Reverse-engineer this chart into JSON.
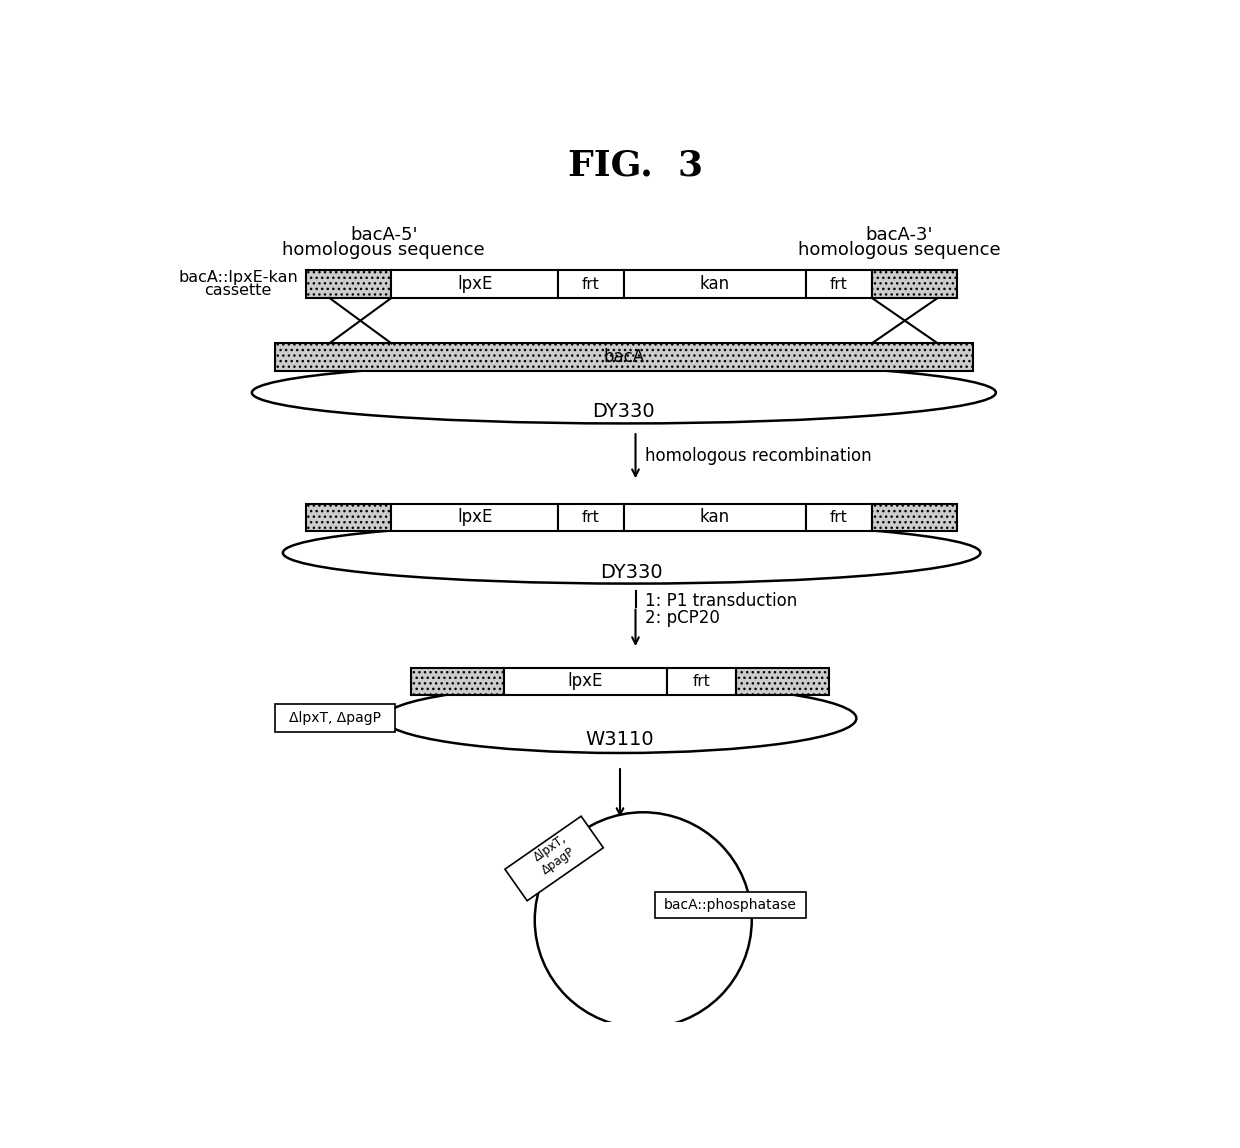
{
  "title": "FIG.  3",
  "bg_color": "#ffffff",
  "hatch_color": "#cccccc",
  "row1_label1": "bacA-5'",
  "row1_label2": "homologous sequence",
  "row1_label3": "bacA-3'",
  "row1_label4": "homologous sequence",
  "cassette_label1": "bacA::lpxE-kan",
  "cassette_label2": "cassette",
  "baca_label": "bacA",
  "DY330_label": "DY330",
  "arrow1_label": "homologous recombination",
  "DY330_label2": "DY330",
  "arrow2_label1": "1: P1 transduction",
  "arrow2_label2": "2: pCP20",
  "W3110_label": "W3110",
  "plasmid_label": "ΔlpxT, ΔpagP",
  "final_plasmid_label": "ΔlpxT,\nΔpagP",
  "final_bac_label": "bacA::phosphatase"
}
